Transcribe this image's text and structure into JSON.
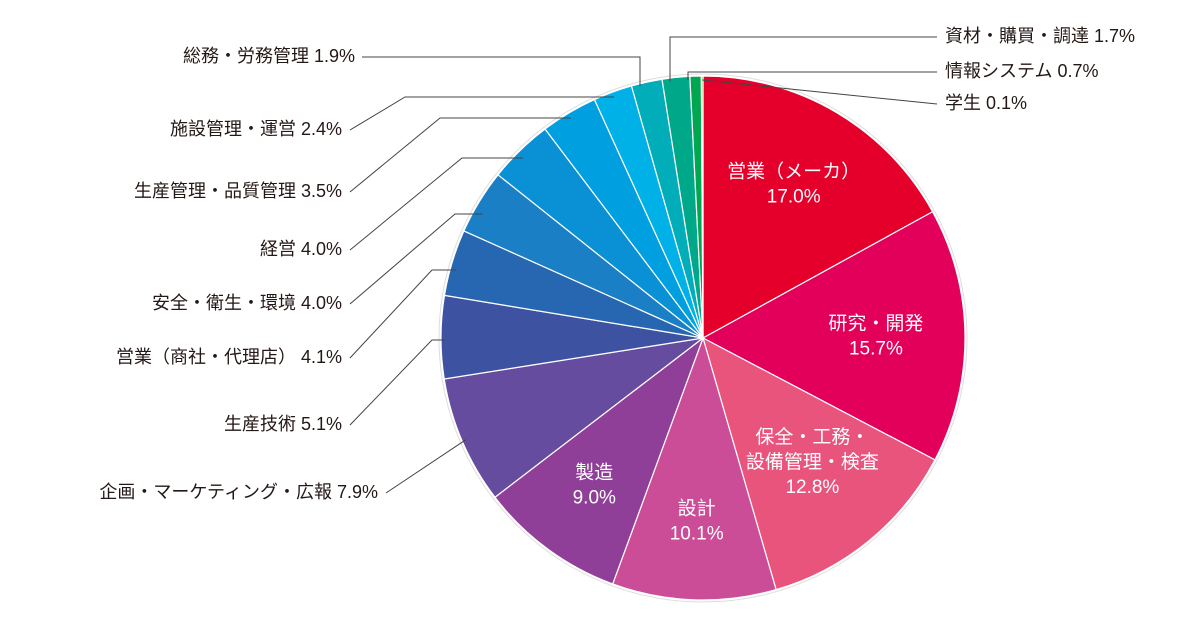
{
  "chart_data": {
    "type": "pie",
    "categories": [
      "営業（メーカ）",
      "研究・開発",
      "保全・工務・設備管理・検査",
      "設計",
      "製造",
      "企画・マーケティング・広報",
      "生産技術",
      "営業（商社・代理店）",
      "安全・衛生・環境",
      "経営",
      "生産管理・品質管理",
      "施設管理・運営",
      "総務・労務管理",
      "資材・購買・調達",
      "情報システム",
      "学生"
    ],
    "values": [
      17.0,
      15.7,
      12.8,
      10.1,
      9.0,
      7.9,
      5.1,
      4.1,
      4.0,
      4.0,
      3.5,
      2.4,
      1.9,
      1.7,
      0.7,
      0.1
    ],
    "value_labels": [
      "17.0%",
      "15.7%",
      "12.8%",
      "10.1%",
      "9.0%",
      "7.9%",
      "5.1%",
      "4.1%",
      "4.0%",
      "4.0%",
      "3.5%",
      "2.4%",
      "1.9%",
      "1.7%",
      "0.7%",
      "0.1%"
    ],
    "colors": [
      "#e4002b",
      "#e3005b",
      "#e9547d",
      "#cb4d97",
      "#8f3f97",
      "#654c9f",
      "#3d52a1",
      "#2767b2",
      "#1a7fc4",
      "#0a91d5",
      "#00a0e0",
      "#00b1e7",
      "#00adb9",
      "#00a88a",
      "#00a650",
      "#8dc63f"
    ]
  }
}
